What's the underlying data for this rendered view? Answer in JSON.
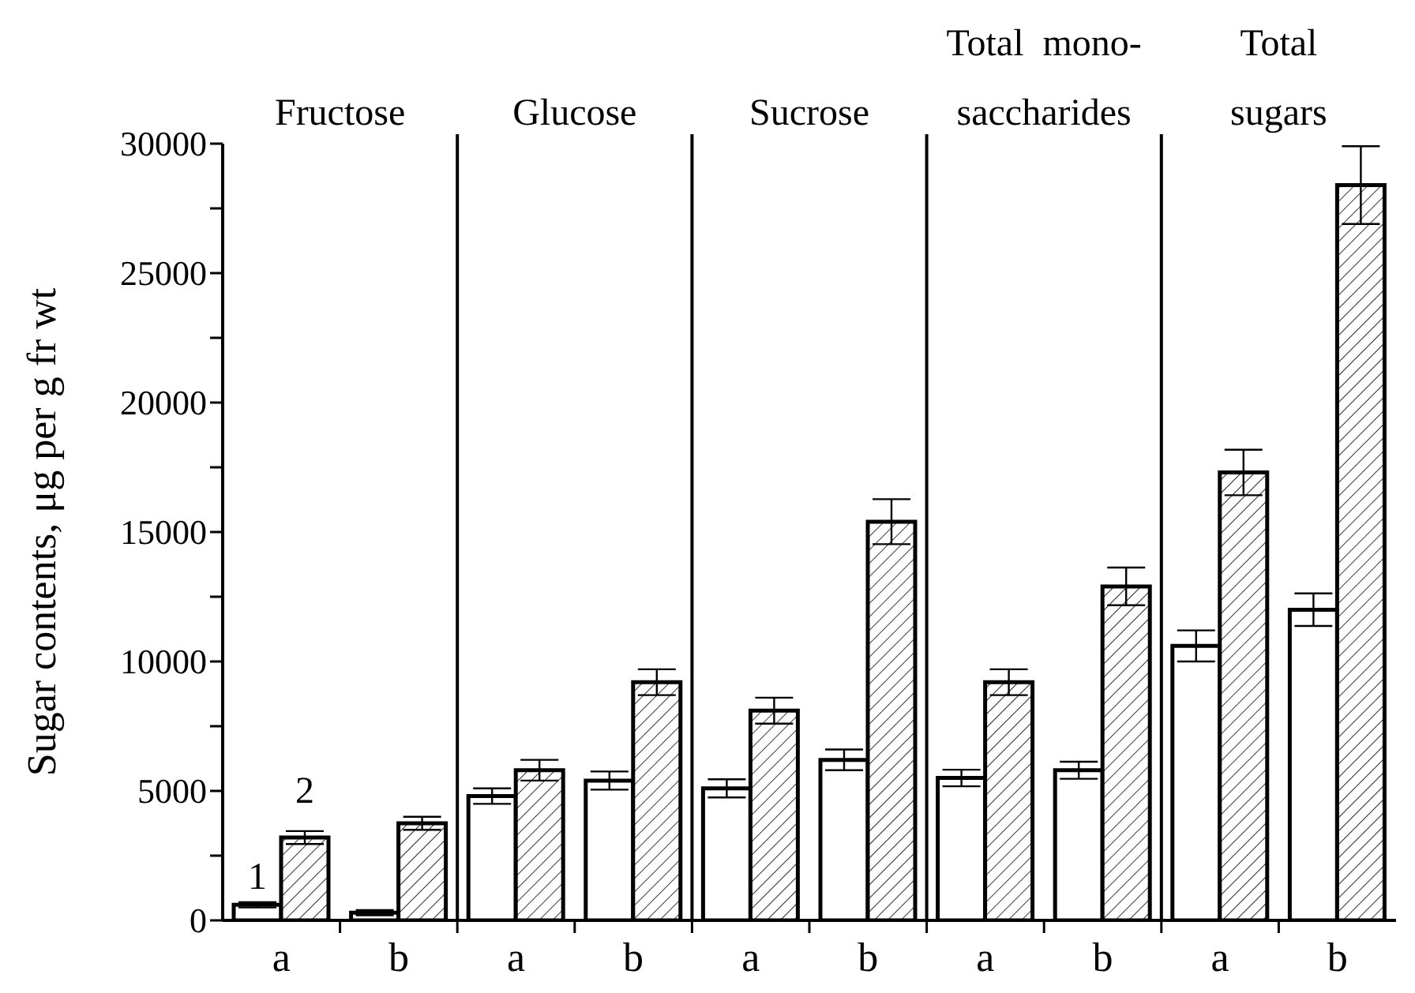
{
  "chart_data": {
    "type": "bar",
    "ylabel": "Sugar contents,  μg per g fr wt",
    "annotations": [
      "Fructose",
      "Glucose",
      "Sucrose",
      "Total  mono-\nsaccharides",
      "Total\nsugars"
    ],
    "categories": [
      "a",
      "b",
      "a",
      "b",
      "a",
      "b",
      "a",
      "b",
      "a",
      "b"
    ],
    "ylim": [
      0,
      30000
    ],
    "yticks": [
      0,
      {
        "value": 2500,
        "label": null
      },
      5000,
      {
        "value": 7500,
        "label": null
      },
      10000,
      {
        "value": 12500,
        "label": null
      },
      15000,
      {
        "value": 17500,
        "label": null
      },
      20000,
      {
        "value": 22500,
        "label": null
      },
      25000,
      {
        "value": 27500,
        "label": null
      },
      30000
    ],
    "series": [
      {
        "name": "1",
        "color": "#ffffff",
        "values": [
          600,
          300,
          4800,
          5400,
          5100,
          6200,
          5500,
          5800,
          10600,
          12000
        ],
        "errors": [
          100,
          100,
          300,
          350,
          350,
          400,
          320,
          330,
          600,
          630
        ]
      },
      {
        "name": "2",
        "color": "#000000",
        "values": [
          3200,
          3750,
          5800,
          9200,
          8100,
          15400,
          9200,
          12900,
          17300,
          28400
        ],
        "errors": [
          250,
          250,
          400,
          500,
          500,
          870,
          500,
          730,
          880,
          1500
        ]
      }
    ],
    "grid": false,
    "legend": false
  }
}
